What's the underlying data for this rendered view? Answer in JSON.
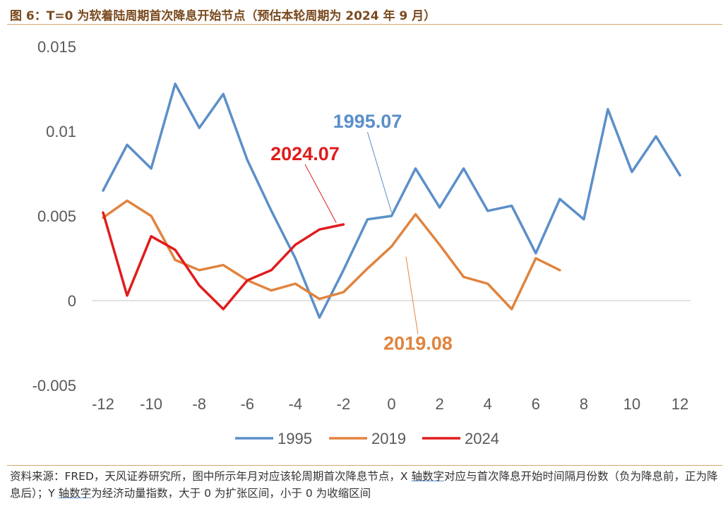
{
  "figure": {
    "title": "图 6：T=0 为软着陆周期首次降息开始节点（预估本轮周期为 2024 年 9 月）",
    "source_prefix": "资料来源：FRED，天风证券研究所，图中所示年月对应该轮周期首次降息节点，X ",
    "source_u1": "轴数字",
    "source_mid": "对应与首次降息开始时间隔月份数（负为降息前，正为降息后）；Y ",
    "source_u2": "轴数字",
    "source_suffix": "为经济动量指数，大于 0 为扩张区间，小于 0 为收缩区间"
  },
  "chart_data": {
    "type": "line",
    "title": "",
    "xlabel": "",
    "ylabel": "",
    "xlim": [
      -12,
      12
    ],
    "ylim": [
      -0.005,
      0.015
    ],
    "x_ticks": [
      -12,
      -10,
      -8,
      -6,
      -4,
      -2,
      0,
      2,
      4,
      6,
      8,
      10,
      12
    ],
    "y_ticks": [
      -0.005,
      0,
      0.005,
      0.01,
      0.015
    ],
    "y_tick_labels": [
      "-0.005",
      "0",
      "0.005",
      "0.01",
      "0.015"
    ],
    "grid": false,
    "legend": "bottom",
    "series": [
      {
        "name": "1995",
        "color": "#5b8fc9",
        "x": [
          -12,
          -11,
          -10,
          -9,
          -8,
          -7,
          -6,
          -5,
          -4,
          -3,
          -2,
          -1,
          0,
          1,
          2,
          3,
          4,
          5,
          6,
          7,
          8,
          9,
          10,
          11,
          12
        ],
        "y": [
          0.0065,
          0.0092,
          0.0078,
          0.0128,
          0.0102,
          0.0122,
          0.0083,
          0.0053,
          0.0025,
          -0.001,
          0.0018,
          0.0048,
          0.005,
          0.0078,
          0.0055,
          0.0078,
          0.0053,
          0.0056,
          0.0028,
          0.006,
          0.0048,
          0.0113,
          0.0076,
          0.0097,
          0.0074
        ]
      },
      {
        "name": "2019",
        "color": "#e0843f",
        "x": [
          -12,
          -11,
          -10,
          -9,
          -8,
          -7,
          -6,
          -5,
          -4,
          -3,
          -2,
          -1,
          0,
          1,
          2,
          3,
          4,
          5,
          6,
          7
        ],
        "y": [
          0.0049,
          0.0059,
          0.005,
          0.0024,
          0.0018,
          0.0021,
          0.0012,
          0.0006,
          0.001,
          0.0001,
          0.0005,
          0.0019,
          0.0032,
          0.0051,
          0.0033,
          0.0014,
          0.001,
          -0.0005,
          0.0025,
          0.0018
        ]
      },
      {
        "name": "2024",
        "color": "#e01c1c",
        "x": [
          -12,
          -11,
          -10,
          -9,
          -8,
          -7,
          -6,
          -5,
          -4,
          -3,
          -2
        ],
        "y": [
          0.0052,
          0.0003,
          0.0038,
          0.003,
          0.0009,
          -0.0005,
          0.0012,
          0.0018,
          0.0033,
          0.0042,
          0.0045
        ]
      }
    ],
    "annotations": [
      {
        "text": "1995.07",
        "color": "#5b8fc9",
        "series": 0,
        "pointer_x": 0,
        "pointer_y": 0.0052,
        "label_x": -1,
        "label_y": 0.0102
      },
      {
        "text": "2024.07",
        "color": "#e01c1c",
        "series": 2,
        "pointer_x": -2.3,
        "pointer_y": 0.0046,
        "label_x": -3.6,
        "label_y": 0.0083
      },
      {
        "text": "2019.08",
        "color": "#e0843f",
        "series": 1,
        "pointer_x": 0.6,
        "pointer_y": 0.0026,
        "label_x": 1.1,
        "label_y": -0.0029
      }
    ]
  }
}
